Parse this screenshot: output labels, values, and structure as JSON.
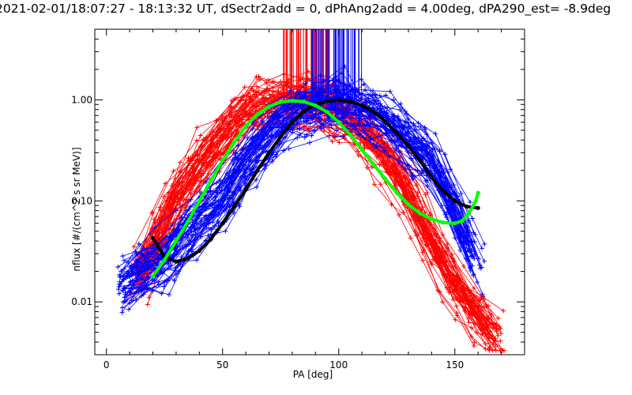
{
  "chart_data": {
    "type": "line",
    "title": "2021-02-01/18:07:27 - 18:13:32 UT, dSectr2add = 0, dPhAng2add = 4.00deg, dPA290_est=  -8.9deg",
    "xlabel": "PA [deg]",
    "ylabel": "nflux [#/(cm^2 s sr MeV)]",
    "xlim": [
      -5,
      180
    ],
    "ylim": [
      0.003,
      5.0
    ],
    "yscale": "log",
    "x_ticks": [
      0,
      50,
      100,
      150
    ],
    "x_tick_labels": [
      "0",
      "50",
      "100",
      "150"
    ],
    "y_ticks": [
      0.01,
      0.1,
      1.0
    ],
    "y_tick_labels": [
      "0.01",
      "0.10",
      "1.00"
    ],
    "grid": false,
    "colors": {
      "red_series": "#ff0000",
      "blue_series": "#0000ff",
      "green_fit": "#00ff00",
      "black_fit": "#000000",
      "frame": "#000000"
    },
    "series": [
      {
        "color": "green",
        "style": "fit",
        "x": [
          20,
          25,
          30,
          35,
          40,
          45,
          50,
          55,
          60,
          65,
          70,
          75,
          80,
          85,
          90,
          95,
          100,
          105,
          110,
          115,
          120,
          125,
          130,
          135,
          140,
          145,
          150,
          153,
          156,
          159,
          160
        ],
        "y": [
          0.018,
          0.026,
          0.04,
          0.062,
          0.1,
          0.16,
          0.25,
          0.38,
          0.55,
          0.72,
          0.86,
          0.95,
          0.98,
          0.96,
          0.88,
          0.76,
          0.6,
          0.45,
          0.32,
          0.23,
          0.165,
          0.12,
          0.092,
          0.075,
          0.066,
          0.061,
          0.06,
          0.063,
          0.075,
          0.1,
          0.12
        ]
      },
      {
        "color": "black",
        "style": "fit",
        "x": [
          20,
          25,
          30,
          35,
          40,
          45,
          50,
          55,
          60,
          65,
          70,
          75,
          80,
          85,
          90,
          95,
          100,
          105,
          110,
          115,
          120,
          125,
          130,
          135,
          140,
          145,
          150,
          155,
          160
        ],
        "y": [
          0.043,
          0.028,
          0.025,
          0.027,
          0.032,
          0.042,
          0.06,
          0.088,
          0.13,
          0.2,
          0.3,
          0.43,
          0.6,
          0.77,
          0.9,
          0.97,
          0.99,
          0.96,
          0.88,
          0.76,
          0.61,
          0.47,
          0.35,
          0.25,
          0.17,
          0.125,
          0.1,
          0.088,
          0.085
        ]
      }
    ],
    "scatter_bands": [
      {
        "color": "red",
        "marker": "+",
        "description_points": [
          [
            15,
            0.018
          ],
          [
            20,
            0.03
          ],
          [
            30,
            0.1
          ],
          [
            45,
            0.3
          ],
          [
            60,
            0.75
          ],
          [
            70,
            0.9
          ],
          [
            80,
            0.95
          ],
          [
            90,
            0.92
          ],
          [
            100,
            0.75
          ],
          [
            110,
            0.5
          ],
          [
            120,
            0.3
          ],
          [
            130,
            0.12
          ],
          [
            140,
            0.04
          ],
          [
            150,
            0.015
          ],
          [
            160,
            0.007
          ],
          [
            170,
            0.004
          ]
        ]
      },
      {
        "color": "blue",
        "marker": "+",
        "description_points": [
          [
            8,
            0.015
          ],
          [
            15,
            0.02
          ],
          [
            25,
            0.025
          ],
          [
            35,
            0.05
          ],
          [
            50,
            0.1
          ],
          [
            60,
            0.25
          ],
          [
            70,
            0.45
          ],
          [
            80,
            0.7
          ],
          [
            90,
            0.9
          ],
          [
            100,
            0.95
          ],
          [
            110,
            0.8
          ],
          [
            120,
            0.6
          ],
          [
            130,
            0.4
          ],
          [
            140,
            0.25
          ],
          [
            150,
            0.08
          ],
          [
            160,
            0.02
          ]
        ]
      }
    ]
  }
}
